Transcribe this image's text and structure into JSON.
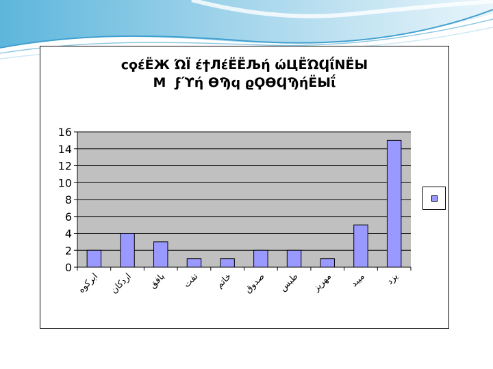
{
  "colors": {
    "plot_background": "#c0c0c0",
    "bar_fill": "#9999ff",
    "bar_stroke": "#000000",
    "slide_wave_light": "#cde8f4",
    "slide_wave_mid": "#8ec9e4",
    "slide_wave_dark": "#3f9fcf"
  },
  "chart_data": {
    "type": "bar",
    "title": "ϲϙέ΍ЁЖ ΏΪ ΃έ΍ϯЛέЁЁЉή ώЦЁΏϤΐΝ΍ЁЫ\n ΍ М ΍ ϝϓή ΍ϴϠ΍ϥ ϱϘϴϤϠή΍ЁЫΐ ΍",
    "categories": [
      "ابرکوه",
      "اردکان",
      "بافق",
      "تفت",
      "خاتم",
      "صدوق",
      "طبس",
      "مهریز",
      "میبد",
      "یزد"
    ],
    "values": [
      2,
      4,
      3,
      1,
      1,
      2,
      2,
      1,
      5,
      15
    ],
    "ylim": [
      0,
      16
    ],
    "yticks": [
      "0",
      "2",
      "4",
      "6",
      "8",
      "10",
      "12",
      "14",
      "16"
    ],
    "grid": true,
    "legend": "right"
  }
}
